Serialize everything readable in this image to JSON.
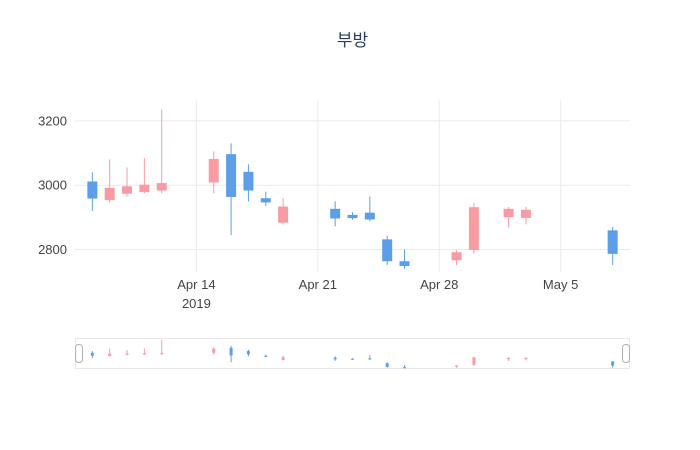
{
  "chart_data": {
    "type": "candlestick",
    "title": "부방",
    "xlabel": "",
    "ylabel": "",
    "grid": true,
    "legend": null,
    "rangeslider": true,
    "colors": {
      "increasing": "#f89ba3",
      "decreasing": "#5c9fe6",
      "grid": "#ebebeb",
      "axis_text": "#444444",
      "slider_border": "#e8e8e8",
      "handle_border": "#b0b0b0",
      "title": "#2a3f5f"
    },
    "y_ticks": [
      2800,
      3000,
      3200
    ],
    "y_range": [
      2730,
      3265
    ],
    "x_range": [
      "2019-04-07",
      "2019-05-09"
    ],
    "x_ticks": [
      {
        "date": "2019-04-14",
        "label": "Apr 14",
        "sublabel": "2019"
      },
      {
        "date": "2019-04-21",
        "label": "Apr 21",
        "sublabel": ""
      },
      {
        "date": "2019-04-28",
        "label": "Apr 28",
        "sublabel": ""
      },
      {
        "date": "2019-05-05",
        "label": "May 5",
        "sublabel": ""
      }
    ],
    "candles": [
      {
        "date": "2019-04-08",
        "open": 3010,
        "high": 3040,
        "low": 2920,
        "close": 2960
      },
      {
        "date": "2019-04-09",
        "open": 2955,
        "high": 3080,
        "low": 2945,
        "close": 2990
      },
      {
        "date": "2019-04-10",
        "open": 2975,
        "high": 3055,
        "low": 2965,
        "close": 2995
      },
      {
        "date": "2019-04-11",
        "open": 2980,
        "high": 3085,
        "low": 2975,
        "close": 3000
      },
      {
        "date": "2019-04-12",
        "open": 2985,
        "high": 3235,
        "low": 2975,
        "close": 3005
      },
      {
        "date": "2019-04-15",
        "open": 3010,
        "high": 3105,
        "low": 2975,
        "close": 3080
      },
      {
        "date": "2019-04-16",
        "open": 3095,
        "high": 3130,
        "low": 2845,
        "close": 2965
      },
      {
        "date": "2019-04-17",
        "open": 3040,
        "high": 3065,
        "low": 2950,
        "close": 2985
      },
      {
        "date": "2019-04-18",
        "open": 2958,
        "high": 2980,
        "low": 2935,
        "close": 2948
      },
      {
        "date": "2019-04-19",
        "open": 2885,
        "high": 2960,
        "low": 2878,
        "close": 2932
      },
      {
        "date": "2019-04-22",
        "open": 2925,
        "high": 2950,
        "low": 2872,
        "close": 2898
      },
      {
        "date": "2019-04-23",
        "open": 2906,
        "high": 2916,
        "low": 2892,
        "close": 2899
      },
      {
        "date": "2019-04-24",
        "open": 2913,
        "high": 2965,
        "low": 2888,
        "close": 2895
      },
      {
        "date": "2019-04-25",
        "open": 2830,
        "high": 2842,
        "low": 2752,
        "close": 2765
      },
      {
        "date": "2019-04-26",
        "open": 2762,
        "high": 2800,
        "low": 2740,
        "close": 2750
      },
      {
        "date": "2019-04-29",
        "open": 2768,
        "high": 2798,
        "low": 2752,
        "close": 2790
      },
      {
        "date": "2019-04-30",
        "open": 2800,
        "high": 2945,
        "low": 2788,
        "close": 2930
      },
      {
        "date": "2019-05-02",
        "open": 2902,
        "high": 2932,
        "low": 2868,
        "close": 2925
      },
      {
        "date": "2019-05-03",
        "open": 2900,
        "high": 2933,
        "low": 2878,
        "close": 2922
      },
      {
        "date": "2019-05-08",
        "open": 2858,
        "high": 2870,
        "low": 2752,
        "close": 2788
      }
    ]
  }
}
